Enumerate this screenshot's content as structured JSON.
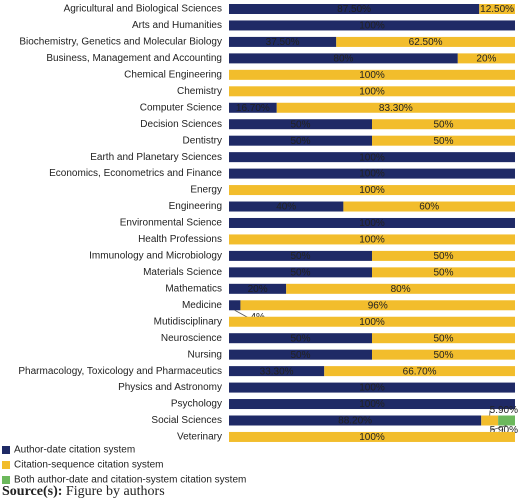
{
  "chart_data": {
    "type": "stacked-bar-horizontal",
    "categories": [
      "Agricultural and Biological Sciences",
      "Arts and Humanities",
      "Biochemistry, Genetics and Molecular Biology",
      "Business, Management and Accounting",
      "Chemical Engineering",
      "Chemistry",
      "Computer Science",
      "Decision Sciences",
      "Dentistry",
      "Earth and Planetary Sciences",
      "Economics, Econometrics and Finance",
      "Energy",
      "Engineering",
      "Environmental Science",
      "Health Professions",
      "Immunology and Microbiology",
      "Materials Science",
      "Mathematics",
      "Medicine",
      "Mutidisciplinary",
      "Neuroscience",
      "Nursing",
      "Pharmacology, Toxicology and Pharmaceutics",
      "Physics and Astronomy",
      "Psychology",
      "Social Sciences",
      "Veterinary"
    ],
    "xlim": [
      0,
      100
    ],
    "series": [
      {
        "name": "Author-date citation system",
        "color": "#1f2a66",
        "label_color": "#ffffff",
        "values": [
          87.5,
          100,
          37.5,
          80,
          0,
          0,
          16.7,
          50,
          50,
          100,
          100,
          0,
          40,
          100,
          0,
          50,
          50,
          20,
          4,
          0,
          50,
          50,
          33.3,
          100,
          100,
          88.2,
          0
        ],
        "value_labels": [
          "87.50%",
          "100%",
          "37.50%",
          "80%",
          null,
          null,
          "16.70%",
          "50%",
          "50%",
          "100%",
          "100%",
          null,
          "40%",
          "100%",
          null,
          "50%",
          "50%",
          "20%",
          "4%",
          null,
          "50%",
          "50%",
          "33.30%",
          "100%",
          "100%",
          "88.20%",
          null
        ]
      },
      {
        "name": "Citation-sequence citation system",
        "color": "#f2bd2c",
        "label_color": "#222222",
        "values": [
          12.5,
          0,
          62.5,
          20,
          100,
          100,
          83.3,
          50,
          50,
          0,
          0,
          100,
          60,
          0,
          100,
          50,
          50,
          80,
          96,
          100,
          50,
          50,
          66.7,
          0,
          0,
          5.9,
          100
        ],
        "value_labels": [
          "12.50%",
          null,
          "62.50%",
          "20%",
          "100%",
          "100%",
          "83.30%",
          "50%",
          "50%",
          null,
          null,
          "100%",
          "60%",
          null,
          "100%",
          "50%",
          "50%",
          "80%",
          "96%",
          "100%",
          "50%",
          "50%",
          "66.70%",
          null,
          null,
          "5.90%",
          "100%"
        ]
      },
      {
        "name": "Both author-date and citation-system citation system",
        "color": "#6cb85c",
        "label_color": "#222222",
        "values": [
          0,
          0,
          0,
          0,
          0,
          0,
          0,
          0,
          0,
          0,
          0,
          0,
          0,
          0,
          0,
          0,
          0,
          0,
          0,
          0,
          0,
          0,
          0,
          0,
          0,
          5.9,
          0
        ],
        "value_labels": [
          null,
          null,
          null,
          null,
          null,
          null,
          null,
          null,
          null,
          null,
          null,
          null,
          null,
          null,
          null,
          null,
          null,
          null,
          null,
          null,
          null,
          null,
          null,
          null,
          null,
          "5.90%",
          null
        ]
      }
    ]
  },
  "source": {
    "label": "Source(s):",
    "text": "Figure by authors"
  }
}
